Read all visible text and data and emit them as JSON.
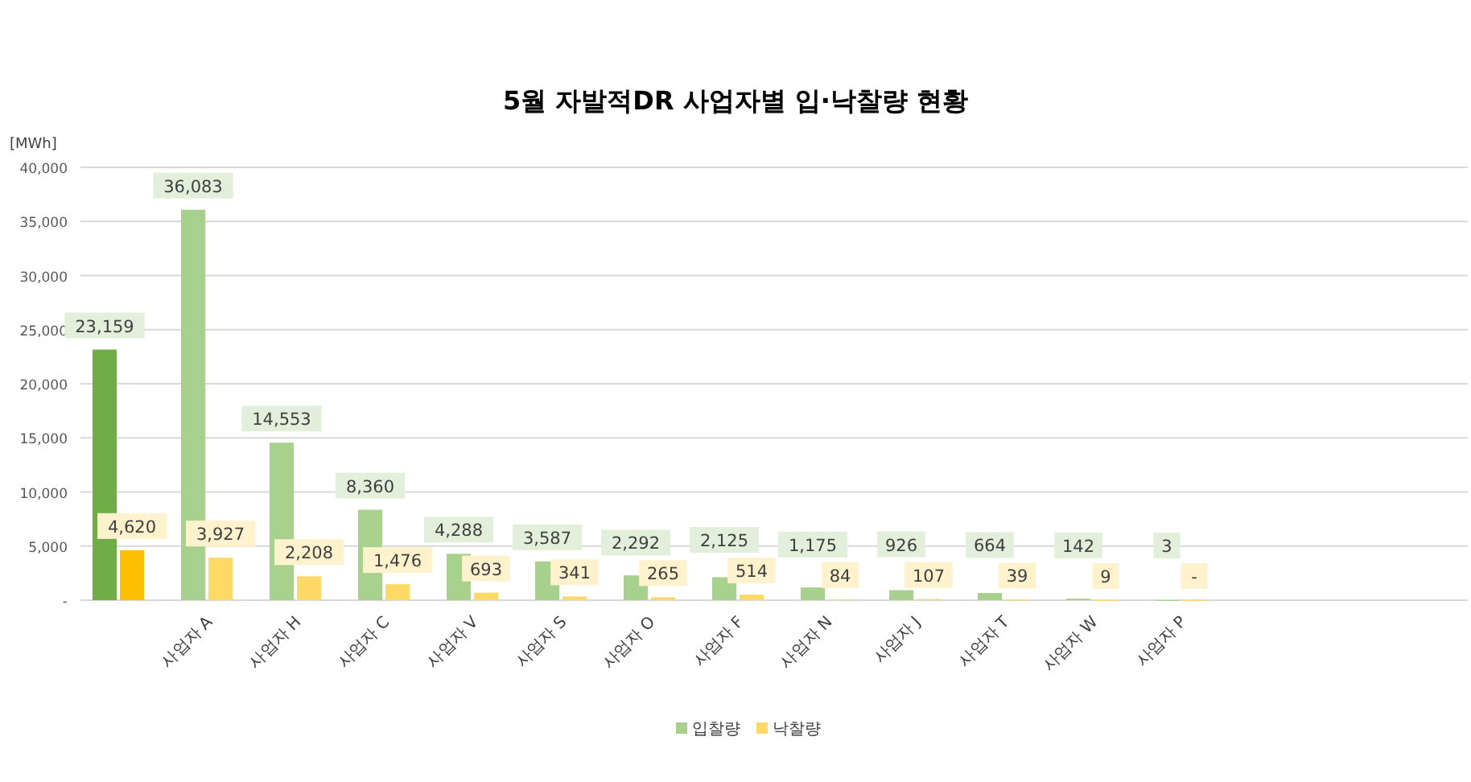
{
  "chart_data": {
    "type": "bar",
    "title": "5월 자발적DR 사업자별 입·낙찰량 현황",
    "ylabel": "[MWh]",
    "categories": [
      null,
      "사업자 A",
      "사업자 H",
      "사업자 C",
      "사업자 V",
      "사업자 S",
      "사업자 O",
      "사업자 F",
      "사업자 N",
      "사업자 J",
      "사업자 T",
      "사업자 W",
      "사업자 P"
    ],
    "series": [
      {
        "name": "입찰량",
        "color": "#a9d18e",
        "colors": [
          "#70ad47",
          "#a9d18e",
          "#a9d18e",
          "#a9d18e",
          "#a9d18e",
          "#a9d18e",
          "#a9d18e",
          "#a9d18e",
          "#a9d18e",
          "#a9d18e",
          "#a9d18e",
          "#a9d18e",
          "#a9d18e"
        ],
        "values": [
          23159,
          36083,
          14553,
          8360,
          4288,
          3587,
          2292,
          2125,
          1175,
          926,
          664,
          142,
          3
        ],
        "value_labels": [
          "23,159",
          "36,083",
          "14,553",
          "8,360",
          "4,288",
          "3,587",
          "2,292",
          "2,125",
          "1,175",
          "926",
          "664",
          "142",
          "3"
        ]
      },
      {
        "name": "낙찰량",
        "color": "#ffd966",
        "colors": [
          "#ffc000",
          "#ffd966",
          "#ffd966",
          "#ffd966",
          "#ffd966",
          "#ffd966",
          "#ffd966",
          "#ffd966",
          "#ffd966",
          "#ffd966",
          "#ffd966",
          "#ffd966",
          "#ffd966"
        ],
        "values": [
          4620,
          3927,
          2208,
          1476,
          693,
          341,
          265,
          514,
          84,
          107,
          39,
          9,
          0
        ],
        "value_labels": [
          "4,620",
          "3,927",
          "2,208",
          "1,476",
          "693",
          "341",
          "265",
          "514",
          "84",
          "107",
          "39",
          "9",
          "-"
        ]
      }
    ],
    "ylim": [
      0,
      40000
    ],
    "yticks": [
      {
        "value": 0,
        "label": "-"
      },
      {
        "value": 5000,
        "label": "5,000"
      },
      {
        "value": 10000,
        "label": "10,000"
      },
      {
        "value": 15000,
        "label": "15,000"
      },
      {
        "value": 20000,
        "label": "20,000"
      },
      {
        "value": 25000,
        "label": "25,000"
      },
      {
        "value": 30000,
        "label": "30,000"
      },
      {
        "value": 35000,
        "label": "35,000"
      },
      {
        "value": 40000,
        "label": "40,000"
      }
    ],
    "grid": "y",
    "legend": "bottom"
  }
}
